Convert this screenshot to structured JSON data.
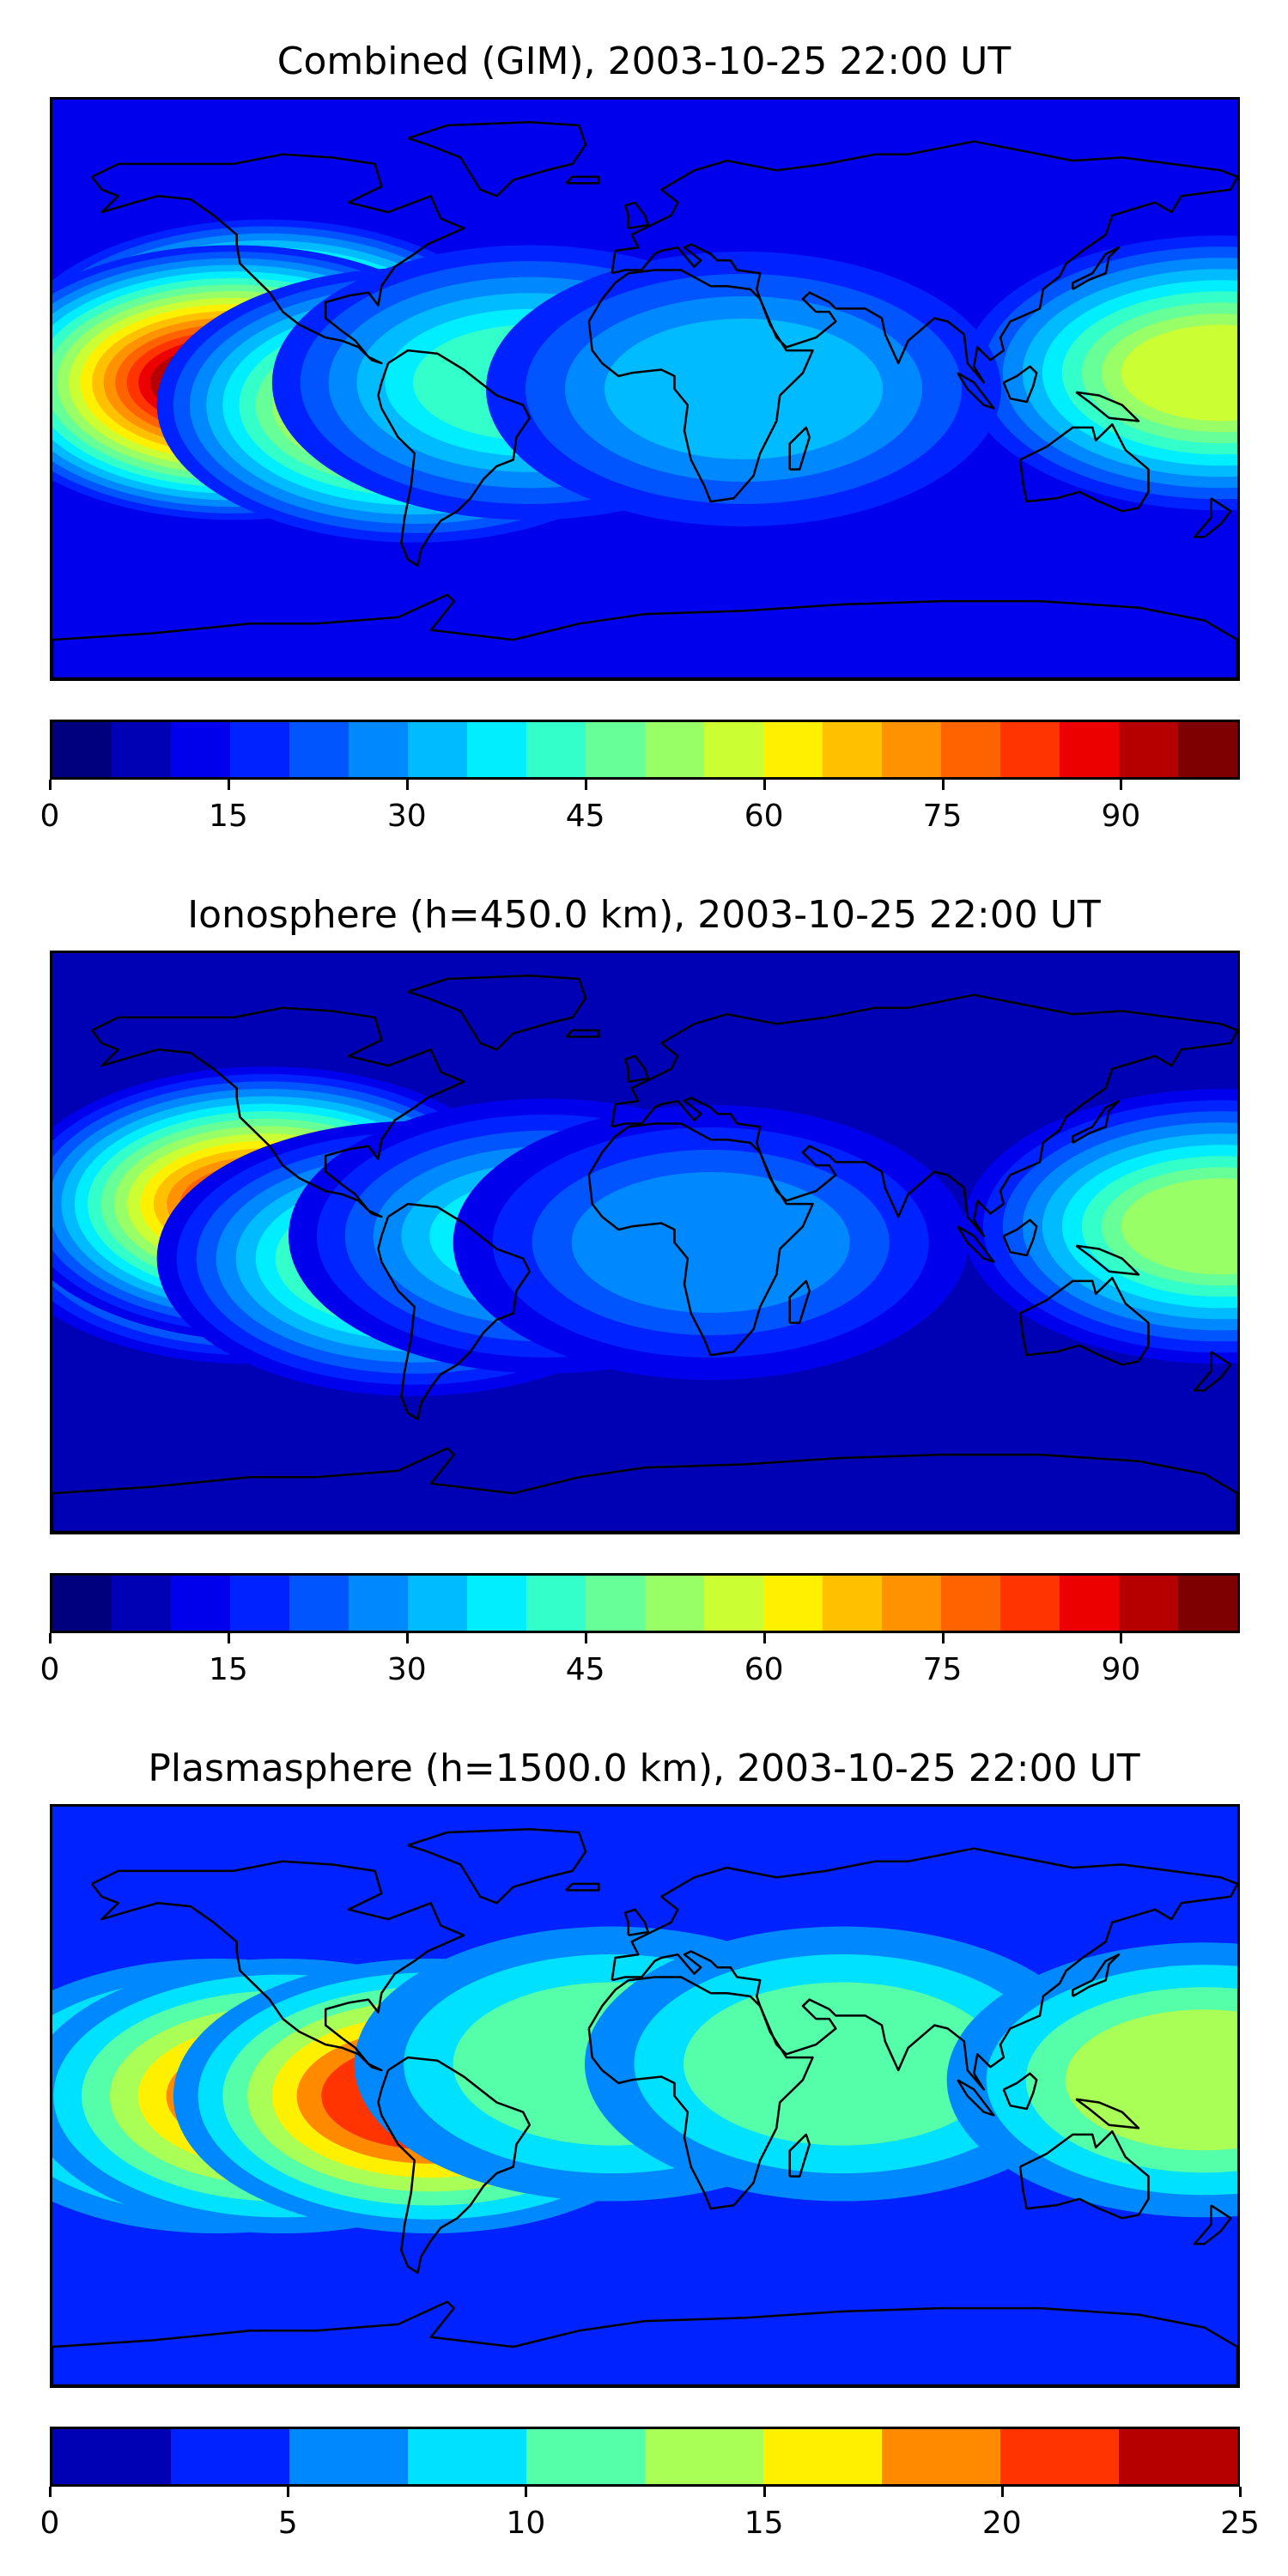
{
  "panels": [
    {
      "id": "combined",
      "title": "Combined (GIM), 2003-10-25 22:00 UT",
      "colorbar": {
        "min": 0,
        "max": 100,
        "step": 5,
        "ticks": [
          "0",
          "15",
          "30",
          "45",
          "60",
          "75",
          "90"
        ],
        "tick_values": [
          0,
          15,
          30,
          45,
          60,
          75,
          90
        ]
      },
      "map_data": {
        "background_level": 2,
        "blobs": [
          {
            "lon": -105,
            "lat": 5,
            "level": 16
          },
          {
            "lon": -115,
            "lat": 10,
            "level": 17
          },
          {
            "lon": -125,
            "lat": 2,
            "level": 18
          },
          {
            "lon": -70,
            "lat": -5,
            "level": 13
          },
          {
            "lon": -35,
            "lat": 2,
            "level": 8
          },
          {
            "lon": 175,
            "lat": 5,
            "level": 11
          },
          {
            "lon": 30,
            "lat": 0,
            "level": 6
          }
        ]
      }
    },
    {
      "id": "ionosphere",
      "title": "Ionosphere  (h=450.0 km), 2003-10-25 22:00 UT",
      "colorbar": {
        "min": 0,
        "max": 100,
        "step": 5,
        "ticks": [
          "0",
          "15",
          "30",
          "45",
          "60",
          "75",
          "90"
        ],
        "tick_values": [
          0,
          15,
          30,
          45,
          60,
          75,
          90
        ]
      },
      "map_data": {
        "background_level": 1,
        "blobs": [
          {
            "lon": -120,
            "lat": 5,
            "level": 13
          },
          {
            "lon": -115,
            "lat": 12,
            "level": 15
          },
          {
            "lon": -70,
            "lat": -5,
            "level": 10
          },
          {
            "lon": -30,
            "lat": 2,
            "level": 7
          },
          {
            "lon": 175,
            "lat": 5,
            "level": 10
          },
          {
            "lon": 20,
            "lat": 0,
            "level": 5
          }
        ]
      }
    },
    {
      "id": "plasmasphere",
      "title": "Plasmasphere (h=1500.0 km), 2003-10-25 22:00 UT",
      "colorbar": {
        "min": 0,
        "max": 25,
        "step": 2.5,
        "ticks": [
          "0",
          "5",
          "10",
          "15",
          "20",
          "25"
        ],
        "tick_values": [
          0,
          5,
          10,
          15,
          20,
          25
        ]
      },
      "map_data": {
        "background_level": 1,
        "blobs": [
          {
            "lon": -130,
            "lat": 0,
            "level": 6
          },
          {
            "lon": -110,
            "lat": 0,
            "level": 7
          },
          {
            "lon": -65,
            "lat": 0,
            "level": 8
          },
          {
            "lon": -10,
            "lat": 10,
            "level": 4
          },
          {
            "lon": 60,
            "lat": 10,
            "level": 4
          },
          {
            "lon": 170,
            "lat": 5,
            "level": 5
          }
        ]
      }
    }
  ],
  "colormap_jet_20": [
    "#00007f",
    "#0000b5",
    "#0000ec",
    "#0022ff",
    "#0055ff",
    "#0088ff",
    "#00bbff",
    "#00eeff",
    "#33ffcb",
    "#66ff98",
    "#99ff66",
    "#ccff33",
    "#fff000",
    "#ffc000",
    "#ff9200",
    "#ff6300",
    "#ff3400",
    "#ec0000",
    "#b60000",
    "#7f0000"
  ],
  "colormap_jet_10": [
    "#0000b5",
    "#0022ff",
    "#0088ff",
    "#00e0ff",
    "#55ffa9",
    "#a9ff55",
    "#fff000",
    "#ff8a00",
    "#ff3400",
    "#b60000"
  ]
}
